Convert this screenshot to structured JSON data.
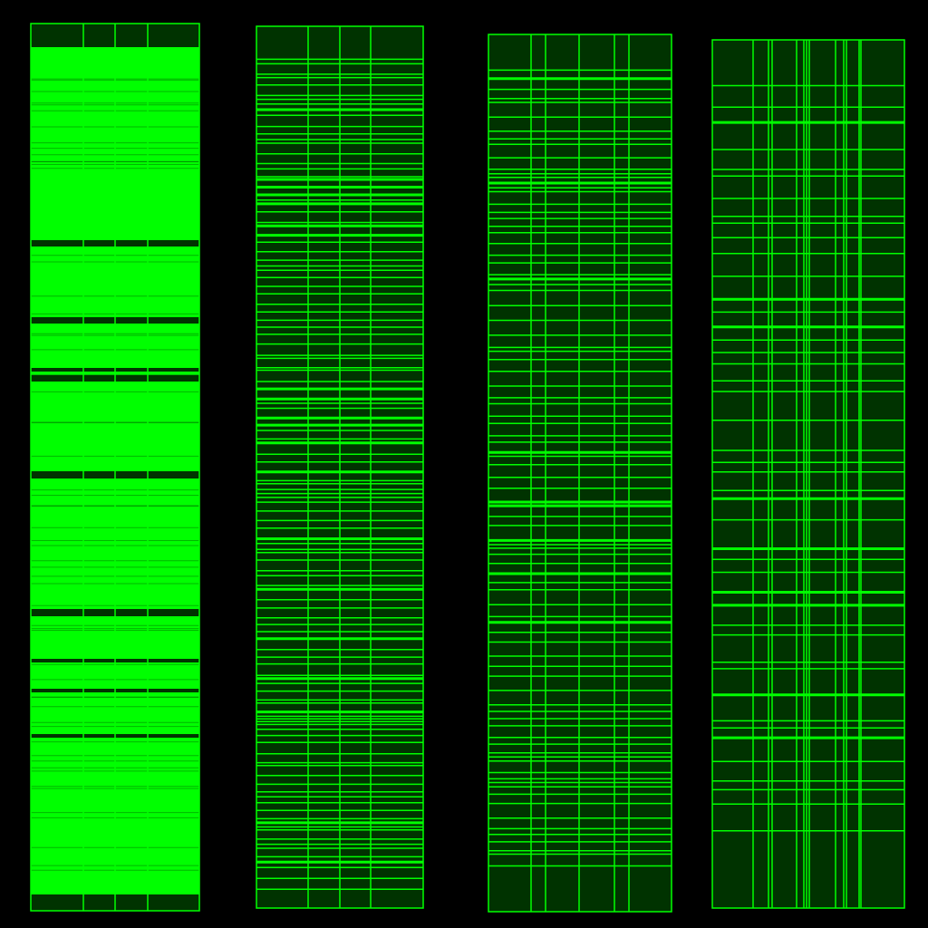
{
  "colors": {
    "background": "#000000",
    "panel_fill": "#003300",
    "line": "#00ff00",
    "dense_fill": "#00ff00"
  },
  "panels": [
    {
      "name": "panel-1",
      "vertical_dividers": 3,
      "approx_horizontal_dividers": 150,
      "appearance": "densely filled"
    },
    {
      "name": "panel-2",
      "vertical_dividers": 3,
      "approx_horizontal_dividers": 120,
      "appearance": "dense"
    },
    {
      "name": "panel-3",
      "vertical_dividers": 5,
      "approx_horizontal_dividers": 90,
      "appearance": "medium"
    },
    {
      "name": "panel-4",
      "vertical_dividers": 12,
      "approx_horizontal_dividers": 45,
      "appearance": "sparse"
    }
  ]
}
